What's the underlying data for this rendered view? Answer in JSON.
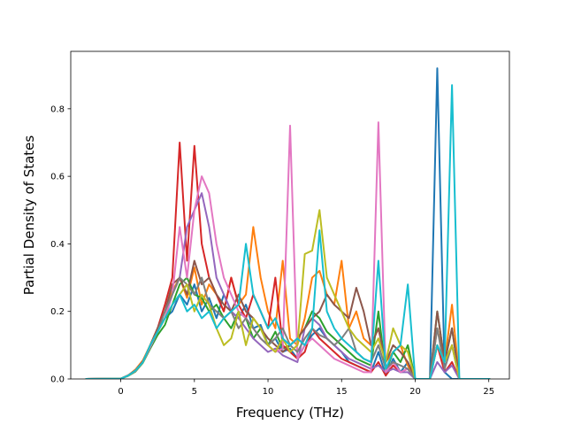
{
  "chart_data": {
    "type": "line",
    "title": "",
    "xlabel": "Frequency (THz)",
    "ylabel": "Partial Density of States",
    "xlim": [
      -3.4,
      26.4
    ],
    "ylim": [
      0,
      0.97
    ],
    "xticks": [
      0,
      5,
      10,
      15,
      20,
      25
    ],
    "yticks": [
      0.0,
      0.2,
      0.4,
      0.6,
      0.8
    ],
    "xtick_labels": [
      "0",
      "5",
      "10",
      "15",
      "20",
      "25"
    ],
    "ytick_labels": [
      "0.0",
      "0.2",
      "0.4",
      "0.6",
      "0.8"
    ],
    "grid": false,
    "legend": "none",
    "series_common_x": [
      -2.4,
      0,
      0.5,
      1,
      1.5,
      2,
      2.5,
      3,
      3.5,
      4,
      4.5,
      5,
      5.5,
      6,
      6.5,
      7,
      7.5,
      8,
      8.5,
      9,
      9.5,
      10,
      10.5,
      11,
      11.5,
      12,
      12.5,
      13,
      13.5,
      14,
      14.5,
      15,
      15.5,
      16,
      16.5,
      17,
      17.5,
      18,
      18.5,
      19,
      19.5,
      20,
      20.5,
      21,
      21.5,
      22,
      22.5,
      23,
      23.5,
      24,
      25.1
    ],
    "series": [
      {
        "color": "#1f77b4",
        "values": [
          0,
          0.001,
          0.01,
          0.025,
          0.05,
          0.1,
          0.14,
          0.18,
          0.2,
          0.25,
          0.22,
          0.28,
          0.2,
          0.24,
          0.18,
          0.25,
          0.2,
          0.18,
          0.22,
          0.15,
          0.16,
          0.1,
          0.12,
          0.08,
          0.09,
          0.06,
          0.1,
          0.13,
          0.15,
          0.12,
          0.1,
          0.08,
          0.05,
          0.04,
          0.03,
          0.02,
          0.08,
          0.01,
          0.06,
          0.02,
          0.05,
          0,
          0,
          0,
          0.92,
          0.02,
          0,
          0,
          0,
          0,
          0
        ]
      },
      {
        "color": "#ff7f0e",
        "values": [
          0,
          0.001,
          0.01,
          0.028,
          0.055,
          0.1,
          0.15,
          0.2,
          0.26,
          0.3,
          0.24,
          0.33,
          0.22,
          0.28,
          0.25,
          0.2,
          0.3,
          0.22,
          0.25,
          0.45,
          0.3,
          0.2,
          0.15,
          0.35,
          0.12,
          0.1,
          0.18,
          0.3,
          0.32,
          0.25,
          0.22,
          0.35,
          0.15,
          0.2,
          0.12,
          0.1,
          0.15,
          0.05,
          0.08,
          0.1,
          0.04,
          0,
          0,
          0,
          0.15,
          0.05,
          0.22,
          0,
          0,
          0,
          0
        ]
      },
      {
        "color": "#2ca02c",
        "values": [
          0,
          0.001,
          0.009,
          0.022,
          0.048,
          0.09,
          0.13,
          0.16,
          0.22,
          0.28,
          0.3,
          0.25,
          0.24,
          0.2,
          0.22,
          0.18,
          0.15,
          0.2,
          0.18,
          0.12,
          0.15,
          0.1,
          0.14,
          0.09,
          0.1,
          0.12,
          0.15,
          0.2,
          0.18,
          0.14,
          0.12,
          0.1,
          0.08,
          0.06,
          0.05,
          0.04,
          0.2,
          0.02,
          0.08,
          0.05,
          0.1,
          0,
          0,
          0,
          0.2,
          0.05,
          0.15,
          0,
          0,
          0,
          0
        ]
      },
      {
        "color": "#d62728",
        "values": [
          0,
          0.001,
          0.011,
          0.026,
          0.052,
          0.1,
          0.15,
          0.22,
          0.3,
          0.7,
          0.35,
          0.69,
          0.4,
          0.3,
          0.25,
          0.2,
          0.3,
          0.22,
          0.18,
          0.25,
          0.2,
          0.15,
          0.3,
          0.1,
          0.08,
          0.06,
          0.08,
          0.15,
          0.12,
          0.1,
          0.08,
          0.06,
          0.05,
          0.04,
          0.03,
          0.02,
          0.05,
          0.01,
          0.04,
          0.02,
          0.03,
          0,
          0,
          0,
          0.1,
          0.02,
          0.05,
          0,
          0,
          0,
          0
        ]
      },
      {
        "color": "#9467bd",
        "values": [
          0,
          0.001,
          0.01,
          0.024,
          0.05,
          0.095,
          0.14,
          0.18,
          0.25,
          0.3,
          0.45,
          0.5,
          0.55,
          0.45,
          0.3,
          0.25,
          0.2,
          0.18,
          0.15,
          0.12,
          0.1,
          0.08,
          0.09,
          0.07,
          0.06,
          0.05,
          0.15,
          0.18,
          0.16,
          0.12,
          0.1,
          0.08,
          0.06,
          0.05,
          0.04,
          0.03,
          0.04,
          0.02,
          0.03,
          0.02,
          0.02,
          0,
          0,
          0,
          0.05,
          0.02,
          0.04,
          0,
          0,
          0,
          0
        ]
      },
      {
        "color": "#8c564b",
        "values": [
          0,
          0.001,
          0.01,
          0.025,
          0.05,
          0.1,
          0.15,
          0.2,
          0.28,
          0.3,
          0.25,
          0.35,
          0.28,
          0.3,
          0.25,
          0.22,
          0.2,
          0.25,
          0.2,
          0.18,
          0.15,
          0.12,
          0.1,
          0.08,
          0.1,
          0.12,
          0.15,
          0.18,
          0.2,
          0.25,
          0.22,
          0.2,
          0.18,
          0.27,
          0.2,
          0.1,
          0.15,
          0.05,
          0.1,
          0.08,
          0.05,
          0,
          0,
          0,
          0.2,
          0.05,
          0.15,
          0,
          0,
          0,
          0
        ]
      },
      {
        "color": "#e377c2",
        "values": [
          0,
          0.001,
          0.01,
          0.024,
          0.05,
          0.095,
          0.14,
          0.18,
          0.25,
          0.45,
          0.3,
          0.5,
          0.6,
          0.55,
          0.4,
          0.3,
          0.25,
          0.2,
          0.18,
          0.15,
          0.12,
          0.1,
          0.08,
          0.09,
          0.75,
          0.06,
          0.1,
          0.12,
          0.1,
          0.08,
          0.06,
          0.05,
          0.04,
          0.03,
          0.02,
          0.02,
          0.76,
          0.02,
          0.05,
          0.02,
          0.03,
          0,
          0,
          0,
          0.1,
          0.05,
          0.1,
          0,
          0,
          0,
          0
        ]
      },
      {
        "color": "#7f7f7f",
        "values": [
          0,
          0.001,
          0.01,
          0.025,
          0.05,
          0.1,
          0.14,
          0.2,
          0.25,
          0.3,
          0.28,
          0.25,
          0.3,
          0.22,
          0.2,
          0.18,
          0.2,
          0.15,
          0.18,
          0.15,
          0.12,
          0.1,
          0.12,
          0.15,
          0.1,
          0.08,
          0.12,
          0.15,
          0.13,
          0.12,
          0.1,
          0.12,
          0.15,
          0.08,
          0.06,
          0.05,
          0.1,
          0.03,
          0.05,
          0.04,
          0.03,
          0,
          0,
          0,
          0.15,
          0.03,
          0.1,
          0,
          0,
          0,
          0
        ]
      },
      {
        "color": "#bcbd22",
        "values": [
          0,
          0.001,
          0.01,
          0.025,
          0.05,
          0.1,
          0.14,
          0.18,
          0.22,
          0.25,
          0.28,
          0.2,
          0.25,
          0.22,
          0.15,
          0.1,
          0.12,
          0.2,
          0.1,
          0.18,
          0.15,
          0.1,
          0.08,
          0.12,
          0.08,
          0.1,
          0.37,
          0.38,
          0.5,
          0.3,
          0.25,
          0.2,
          0.15,
          0.12,
          0.1,
          0.08,
          0.12,
          0.05,
          0.15,
          0.1,
          0.08,
          0,
          0,
          0,
          0.1,
          0.05,
          0.1,
          0,
          0,
          0,
          0
        ]
      },
      {
        "color": "#17becf",
        "values": [
          0,
          0.001,
          0.01,
          0.025,
          0.05,
          0.1,
          0.14,
          0.18,
          0.22,
          0.25,
          0.2,
          0.22,
          0.18,
          0.2,
          0.15,
          0.18,
          0.2,
          0.22,
          0.4,
          0.25,
          0.2,
          0.15,
          0.18,
          0.12,
          0.1,
          0.12,
          0.1,
          0.15,
          0.44,
          0.2,
          0.15,
          0.12,
          0.1,
          0.08,
          0.06,
          0.05,
          0.35,
          0.03,
          0.08,
          0.1,
          0.28,
          0,
          0,
          0,
          0.1,
          0.05,
          0.87,
          0,
          0,
          0,
          0
        ]
      }
    ]
  }
}
